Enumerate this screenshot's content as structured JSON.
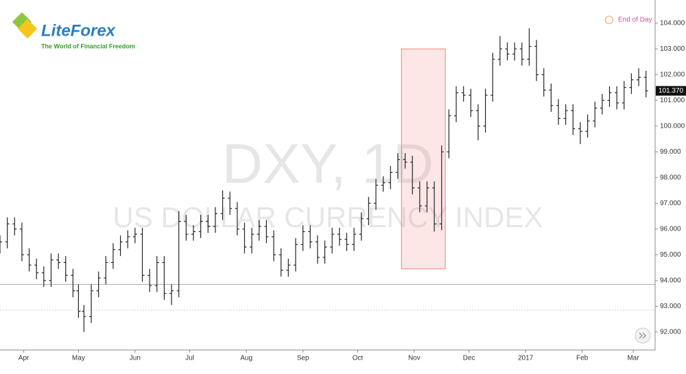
{
  "logo": {
    "name": "LiteForex",
    "tagline": "The World of Financial Freedom"
  },
  "chart_data": {
    "type": "ohlc",
    "title": "DXY, 1D",
    "subtitle": "US DOLLAR CURRENCY INDEX",
    "annotation": "End of Day",
    "color": "#222222",
    "x": [
      0,
      4,
      8,
      12,
      16,
      20,
      24,
      28,
      32,
      36,
      40,
      43,
      46,
      50,
      54,
      58,
      62,
      66,
      70,
      74,
      78,
      82,
      86,
      90,
      94,
      98,
      102,
      106,
      110,
      114,
      118,
      122,
      126,
      130,
      134,
      138,
      142,
      146,
      150,
      154,
      158,
      162,
      166,
      170,
      174,
      178,
      182,
      186,
      190,
      194,
      198,
      202,
      206,
      210,
      214,
      218,
      222,
      226,
      230,
      234,
      238,
      242,
      246,
      250,
      254,
      258,
      262,
      266,
      270,
      274,
      278,
      282,
      286,
      290,
      294,
      298,
      302,
      306,
      310,
      314,
      318,
      322,
      326,
      330,
      334,
      338,
      342,
      346,
      350,
      354
    ],
    "open": [
      95.3,
      95.5,
      96.2,
      96.0,
      95.0,
      94.6,
      94.3,
      94.0,
      94.8,
      94.7,
      94.2,
      93.6,
      92.8,
      92.6,
      93.6,
      94.1,
      94.7,
      95.2,
      95.5,
      95.7,
      95.8,
      94.2,
      93.8,
      94.7,
      93.5,
      93.6,
      96.3,
      95.8,
      95.9,
      96.3,
      96.1,
      96.6,
      97.2,
      96.8,
      96.0,
      95.3,
      95.8,
      96.1,
      95.7,
      95.0,
      94.4,
      94.6,
      95.4,
      95.9,
      95.5,
      94.9,
      95.3,
      95.8,
      95.6,
      95.4,
      95.8,
      96.4,
      97.0,
      97.7,
      97.8,
      98.2,
      98.7,
      98.6,
      97.6,
      96.9,
      97.6,
      96.2,
      99.0,
      100.4,
      101.3,
      101.2,
      100.6,
      100.0,
      101.2,
      102.6,
      103.0,
      102.8,
      103.0,
      102.6,
      103.1,
      102.0,
      101.4,
      100.8,
      100.3,
      100.6,
      99.9,
      99.8,
      100.2,
      100.7,
      101.0,
      101.3,
      100.9,
      101.5,
      101.8,
      101.9
    ],
    "high": [
      95.75,
      96.45,
      96.45,
      96.25,
      95.25,
      94.85,
      94.55,
      95.05,
      95.05,
      94.95,
      94.45,
      93.85,
      93.05,
      93.85,
      94.35,
      94.95,
      95.45,
      95.75,
      95.95,
      96.05,
      96.05,
      94.45,
      94.95,
      94.95,
      93.85,
      96.7,
      96.55,
      96.15,
      96.55,
      96.55,
      96.85,
      97.5,
      97.45,
      97.05,
      96.25,
      96.05,
      96.35,
      96.35,
      95.95,
      95.25,
      94.85,
      95.65,
      96.15,
      96.15,
      95.75,
      95.55,
      96.05,
      96.05,
      95.85,
      96.05,
      96.65,
      97.25,
      97.95,
      98.05,
      98.45,
      98.95,
      98.95,
      98.85,
      97.85,
      97.85,
      97.85,
      99.25,
      100.65,
      101.55,
      101.55,
      101.45,
      100.85,
      101.45,
      102.85,
      103.5,
      103.25,
      103.25,
      103.25,
      103.8,
      103.35,
      102.25,
      101.65,
      101.05,
      100.85,
      100.85,
      100.15,
      100.45,
      100.95,
      101.25,
      101.55,
      101.55,
      101.75,
      102.05,
      102.25,
      102.15
    ],
    "low": [
      95.05,
      95.25,
      95.75,
      94.75,
      94.35,
      94.05,
      93.75,
      93.75,
      94.45,
      93.95,
      93.35,
      92.55,
      92.0,
      92.35,
      93.35,
      93.85,
      94.45,
      94.95,
      95.25,
      95.45,
      93.95,
      93.55,
      93.55,
      93.25,
      93.05,
      93.35,
      95.55,
      95.55,
      95.65,
      95.85,
      95.85,
      96.35,
      96.55,
      95.75,
      95.05,
      95.05,
      95.55,
      95.45,
      94.75,
      94.15,
      94.15,
      94.35,
      95.15,
      95.25,
      94.65,
      94.65,
      95.05,
      95.35,
      95.15,
      95.15,
      95.55,
      96.15,
      96.75,
      97.45,
      97.55,
      97.95,
      98.35,
      97.35,
      96.65,
      96.65,
      95.9,
      95.95,
      98.75,
      100.15,
      100.95,
      100.35,
      99.45,
      99.75,
      100.95,
      102.35,
      102.55,
      102.55,
      102.35,
      102.35,
      101.75,
      101.15,
      100.55,
      100.05,
      100.05,
      99.65,
      99.3,
      99.55,
      99.95,
      100.45,
      100.75,
      100.65,
      100.65,
      101.25,
      101.55,
      101.12
    ],
    "close": [
      95.5,
      96.2,
      96.0,
      95.0,
      94.6,
      94.3,
      94.0,
      94.8,
      94.7,
      94.2,
      93.6,
      92.8,
      92.6,
      93.6,
      94.1,
      94.7,
      95.2,
      95.5,
      95.7,
      95.8,
      94.2,
      93.8,
      94.7,
      93.5,
      93.6,
      96.3,
      95.8,
      95.9,
      96.3,
      96.1,
      96.6,
      97.2,
      96.8,
      96.0,
      95.3,
      95.8,
      96.1,
      95.7,
      95.0,
      94.4,
      94.6,
      95.4,
      95.9,
      95.5,
      94.9,
      95.3,
      95.8,
      95.6,
      95.4,
      95.8,
      96.4,
      97.0,
      97.7,
      97.8,
      98.2,
      98.7,
      98.6,
      97.6,
      96.9,
      97.6,
      96.2,
      99.0,
      100.4,
      101.3,
      101.2,
      100.6,
      100.0,
      101.2,
      102.6,
      103.0,
      102.8,
      103.0,
      102.6,
      103.1,
      102.0,
      101.4,
      100.8,
      100.3,
      100.6,
      99.9,
      99.8,
      100.2,
      100.7,
      101.0,
      101.3,
      100.9,
      101.5,
      101.8,
      101.9,
      101.37
    ],
    "last_label": "101.370",
    "xlim": [
      0,
      359
    ],
    "ylim": [
      91.3,
      104.9
    ],
    "xticks": [
      {
        "value": 13,
        "label": "Apr"
      },
      {
        "value": 43,
        "label": "May"
      },
      {
        "value": 74,
        "label": "Jun"
      },
      {
        "value": 104,
        "label": "Jul"
      },
      {
        "value": 135,
        "label": "Aug"
      },
      {
        "value": 166,
        "label": "Sep"
      },
      {
        "value": 196,
        "label": "Oct"
      },
      {
        "value": 227,
        "label": "Nov"
      },
      {
        "value": 257,
        "label": "Dec"
      },
      {
        "value": 288,
        "label": "2017"
      },
      {
        "value": 319,
        "label": "Feb"
      },
      {
        "value": 347,
        "label": "Mar"
      }
    ],
    "yticks": [
      {
        "value": 92,
        "label": "92.000"
      },
      {
        "value": 93,
        "label": "93.000"
      },
      {
        "value": 94,
        "label": "94.000"
      },
      {
        "value": 95,
        "label": "95.000"
      },
      {
        "value": 96,
        "label": "96.000"
      },
      {
        "value": 97,
        "label": "97.000"
      },
      {
        "value": 98,
        "label": "98.000"
      },
      {
        "value": 99,
        "label": "99.000"
      },
      {
        "value": 100,
        "label": "100.000"
      },
      {
        "value": 101,
        "label": "101.000"
      },
      {
        "value": 102,
        "label": "102.000"
      },
      {
        "value": 103,
        "label": "103.000"
      },
      {
        "value": 104,
        "label": "104.000"
      }
    ],
    "highlight": {
      "x": [
        220,
        244
      ],
      "y": [
        94.45,
        103.0
      ],
      "color": "#f08080"
    },
    "hlines": [
      93.85,
      92.85
    ],
    "grid": false
  }
}
